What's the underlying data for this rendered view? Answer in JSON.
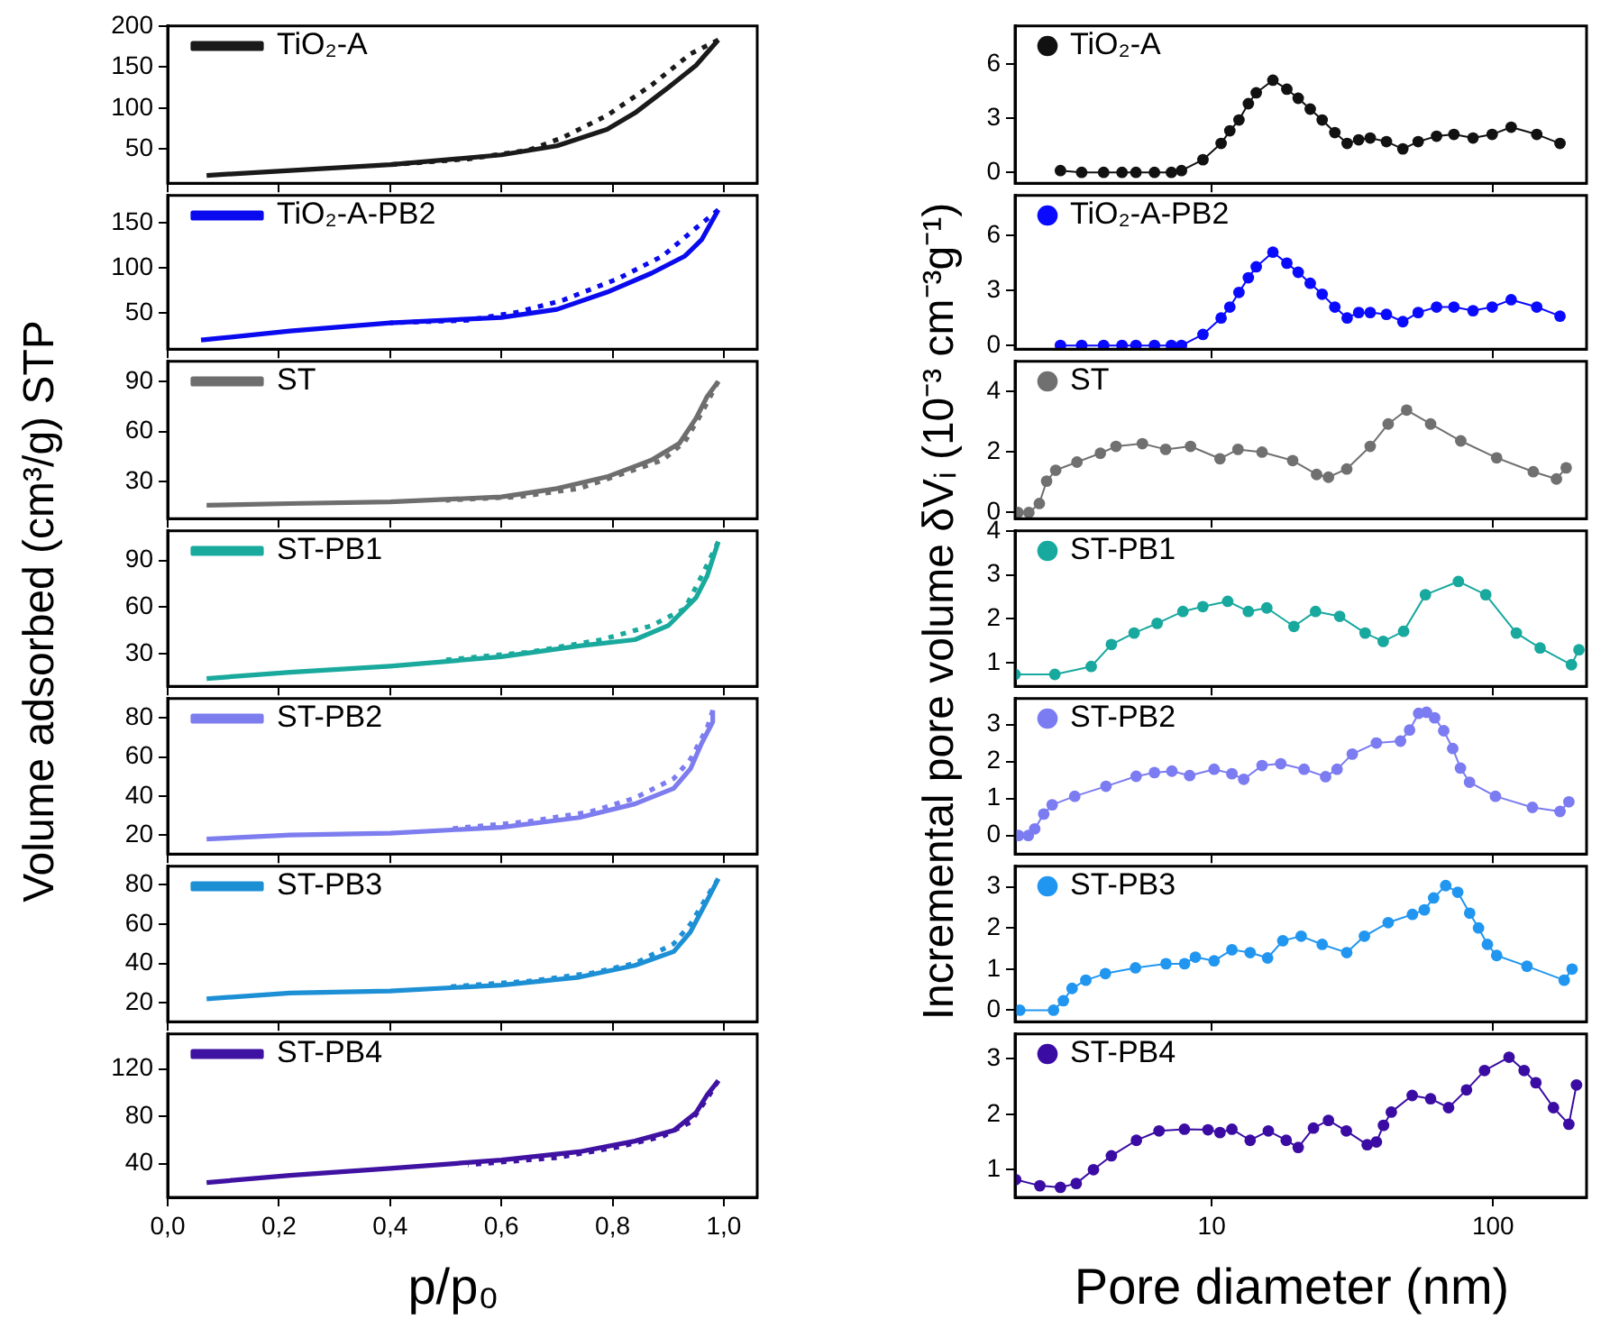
{
  "chart_data": [
    {
      "type": "line",
      "ylabel": "Volume adsorbed (cm³/g) STP",
      "legend": "top left",
      "marker": "none",
      "tick_labels": "y",
      "xlim": [
        0,
        1.06
      ],
      "xticks": [
        {
          "value": 0,
          "label": null
        },
        {
          "value": 0.2,
          "label": null
        },
        {
          "value": 0.4,
          "label": null
        },
        {
          "value": 0.6,
          "label": null
        },
        {
          "value": 0.8,
          "label": null
        },
        {
          "value": 1,
          "label": null
        }
      ],
      "ylim": [
        8.5,
        200
      ],
      "yticks": [
        50,
        100,
        150,
        200
      ],
      "series": [
        {
          "name": "TiO₂-A",
          "color": "#1a1a1a",
          "line_style": "solid",
          "x": [
            0.07,
            0.22,
            0.4,
            0.6,
            0.7,
            0.79,
            0.84,
            0.9,
            0.95,
            0.99
          ],
          "values": [
            18,
            24,
            31,
            43,
            54,
            74,
            94,
            125,
            152,
            183
          ]
        },
        {
          "color": "#1a1a1a",
          "line_style": "dotted",
          "x": [
            0.99,
            0.94,
            0.87,
            0.79,
            0.71,
            0.65,
            0.54,
            0.4
          ],
          "values": [
            183,
            166,
            128,
            91,
            64,
            49,
            38,
            31
          ]
        }
      ]
    },
    {
      "type": "line",
      "legend": "top left",
      "marker": "none",
      "tick_labels": "y",
      "xlim": [
        0,
        1.06
      ],
      "xticks": [
        {
          "value": 0,
          "label": null
        },
        {
          "value": 0.2,
          "label": null
        },
        {
          "value": 0.4,
          "label": null
        },
        {
          "value": 0.6,
          "label": null
        },
        {
          "value": 0.8,
          "label": null
        },
        {
          "value": 1,
          "label": null
        }
      ],
      "ylim": [
        10,
        180
      ],
      "yticks": [
        50,
        100,
        150
      ],
      "series": [
        {
          "name": "TiO₂-A-PB2",
          "color": "#0a0aee",
          "line_style": "solid",
          "x": [
            0.06,
            0.22,
            0.4,
            0.6,
            0.7,
            0.79,
            0.87,
            0.93,
            0.96,
            0.99
          ],
          "values": [
            20,
            30,
            39,
            45,
            54,
            73,
            94,
            113,
            131,
            164
          ]
        },
        {
          "color": "#0a0aee",
          "line_style": "dotted",
          "x": [
            0.99,
            0.95,
            0.89,
            0.81,
            0.71,
            0.63,
            0.54,
            0.4
          ],
          "values": [
            164,
            144,
            113,
            88,
            64,
            51,
            42,
            39
          ]
        }
      ]
    },
    {
      "type": "line",
      "legend": "top left",
      "marker": "none",
      "tick_labels": "y",
      "xlim": [
        0,
        1.06
      ],
      "xticks": [
        {
          "value": 0,
          "label": null
        },
        {
          "value": 0.2,
          "label": null
        },
        {
          "value": 0.4,
          "label": null
        },
        {
          "value": 0.6,
          "label": null
        },
        {
          "value": 0.8,
          "label": null
        },
        {
          "value": 1,
          "label": null
        }
      ],
      "ylim": [
        8,
        102
      ],
      "yticks": [
        30,
        60,
        90
      ],
      "series": [
        {
          "name": "ST",
          "color": "#6e6e6e",
          "line_style": "solid",
          "x": [
            0.07,
            0.22,
            0.4,
            0.6,
            0.7,
            0.79,
            0.87,
            0.92,
            0.95,
            0.97,
            0.99
          ],
          "values": [
            16,
            17,
            18,
            21,
            26,
            33,
            43,
            53,
            68,
            81,
            90
          ]
        },
        {
          "color": "#6e6e6e",
          "line_style": "dotted",
          "x": [
            0.99,
            0.96,
            0.93,
            0.89,
            0.82,
            0.74,
            0.63,
            0.5
          ],
          "values": [
            90,
            71,
            54,
            43,
            35,
            26,
            21,
            19
          ]
        }
      ]
    },
    {
      "type": "line",
      "legend": "top left",
      "marker": "none",
      "tick_labels": "y",
      "xlim": [
        0,
        1.06
      ],
      "xticks": [
        {
          "value": 0,
          "label": null
        },
        {
          "value": 0.2,
          "label": null
        },
        {
          "value": 0.4,
          "label": null
        },
        {
          "value": 0.6,
          "label": null
        },
        {
          "value": 0.8,
          "label": null
        },
        {
          "value": 1,
          "label": null
        }
      ],
      "ylim": [
        9,
        109
      ],
      "yticks": [
        30,
        60,
        90
      ],
      "series": [
        {
          "name": "ST-PB1",
          "color": "#1aa99d",
          "line_style": "solid",
          "x": [
            0.07,
            0.22,
            0.4,
            0.6,
            0.74,
            0.84,
            0.9,
            0.95,
            0.97,
            0.99
          ],
          "values": [
            14,
            18,
            22,
            28,
            35,
            39,
            48,
            66,
            80,
            102
          ]
        },
        {
          "color": "#1aa99d",
          "line_style": "dotted",
          "x": [
            0.99,
            0.96,
            0.93,
            0.87,
            0.78,
            0.65,
            0.5
          ],
          "values": [
            102,
            80,
            59,
            48,
            39,
            31,
            26
          ]
        }
      ]
    },
    {
      "type": "line",
      "legend": "top left",
      "marker": "none",
      "tick_labels": "y",
      "xlim": [
        0,
        1.06
      ],
      "xticks": [
        {
          "value": 0,
          "label": null
        },
        {
          "value": 0.2,
          "label": null
        },
        {
          "value": 0.4,
          "label": null
        },
        {
          "value": 0.6,
          "label": null
        },
        {
          "value": 0.8,
          "label": null
        },
        {
          "value": 1,
          "label": null
        }
      ],
      "ylim": [
        10.3,
        90
      ],
      "yticks": [
        20,
        40,
        60,
        80
      ],
      "series": [
        {
          "name": "ST-PB2",
          "color": "#7d7def",
          "line_style": "solid",
          "x": [
            0.07,
            0.22,
            0.4,
            0.6,
            0.74,
            0.84,
            0.91,
            0.94,
            0.96,
            0.98,
            0.98
          ],
          "values": [
            18,
            20,
            21,
            24,
            29,
            36,
            44,
            54,
            67,
            78,
            84
          ]
        },
        {
          "color": "#7d7def",
          "line_style": "dotted",
          "x": [
            0.98,
            0.97,
            0.94,
            0.91,
            0.84,
            0.76,
            0.65,
            0.5
          ],
          "values": [
            84,
            75,
            59,
            49,
            39,
            32,
            27,
            23
          ]
        }
      ]
    },
    {
      "type": "line",
      "legend": "top left",
      "marker": "none",
      "tick_labels": "y",
      "xlim": [
        0,
        1.06
      ],
      "xticks": [
        {
          "value": 0,
          "label": null
        },
        {
          "value": 0.2,
          "label": null
        },
        {
          "value": 0.4,
          "label": null
        },
        {
          "value": 0.6,
          "label": null
        },
        {
          "value": 0.8,
          "label": null
        },
        {
          "value": 1,
          "label": null
        }
      ],
      "ylim": [
        10.4,
        89.3
      ],
      "yticks": [
        20,
        40,
        60,
        80
      ],
      "series": [
        {
          "name": "ST-PB3",
          "color": "#1d8fd5",
          "line_style": "solid",
          "x": [
            0.07,
            0.22,
            0.4,
            0.6,
            0.74,
            0.84,
            0.91,
            0.94,
            0.97,
            0.99
          ],
          "values": [
            22,
            25,
            26,
            29,
            33,
            39,
            46,
            56,
            72,
            83
          ]
        },
        {
          "color": "#1d8fd5",
          "line_style": "dotted",
          "x": [
            0.99,
            0.97,
            0.94,
            0.91,
            0.84,
            0.76,
            0.65,
            0.5
          ],
          "values": [
            83,
            74,
            60,
            50,
            40,
            35,
            31,
            28
          ]
        }
      ]
    },
    {
      "type": "line",
      "xlabel": "p/p₀",
      "legend": "top left",
      "marker": "none",
      "xlim": [
        0,
        1.06
      ],
      "xticks": [
        {
          "value": 0,
          "label": "0,0"
        },
        {
          "value": 0.2,
          "label": "0,2"
        },
        {
          "value": 0.4,
          "label": "0,4"
        },
        {
          "value": 0.6,
          "label": "0,6"
        },
        {
          "value": 0.8,
          "label": "0,8"
        },
        {
          "value": 1,
          "label": "1,0"
        }
      ],
      "ylim": [
        11.5,
        149.5
      ],
      "yticks": [
        40,
        80,
        120
      ],
      "series": [
        {
          "name": "ST-PB4",
          "color": "#3f12a2",
          "line_style": "solid",
          "x": [
            0.07,
            0.22,
            0.4,
            0.6,
            0.74,
            0.84,
            0.91,
            0.95,
            0.97,
            0.99
          ],
          "values": [
            24,
            30,
            36,
            43,
            50,
            59,
            68,
            83,
            98,
            110
          ]
        },
        {
          "color": "#3f12a2",
          "line_style": "dotted",
          "x": [
            0.99,
            0.97,
            0.94,
            0.89,
            0.81,
            0.7,
            0.54
          ],
          "values": [
            110,
            95,
            75,
            63,
            54,
            45,
            39
          ]
        }
      ]
    },
    {
      "type": "line",
      "ylabel": "Incremental pore volume δVᵢ (10⁻³ cm⁻³g⁻¹)",
      "legend": "top left",
      "marker": "circle",
      "line_style": "solid",
      "log": "x",
      "tick_labels": "y",
      "xlim": [
        2,
        215
      ],
      "xticks": [
        {
          "value": 10,
          "label": null
        },
        {
          "value": 100,
          "label": null
        }
      ],
      "ylim": [
        -0.6,
        8.1
      ],
      "yticks": [
        0,
        3,
        6
      ],
      "series": [
        {
          "name": "TiO₂-A",
          "color": "#111111",
          "x": [
            2.9,
            3.45,
            4.13,
            4.8,
            5.38,
            6.26,
            7.19,
            7.81,
            9.31,
            10.8,
            11.6,
            12.5,
            13.5,
            14.4,
            16.5,
            18.5,
            20.3,
            22.4,
            24.7,
            27.4,
            30.3,
            33.3,
            36.6,
            41.8,
            47.8,
            54.2,
            63,
            72.6,
            84.9,
            99.3,
            116,
            143,
            173
          ],
          "values": [
            0.1,
            0,
            0,
            0,
            0,
            0,
            0,
            0.1,
            0.7,
            1.6,
            2.3,
            2.9,
            3.8,
            4.4,
            5.1,
            4.6,
            4.1,
            3.5,
            2.9,
            2.2,
            1.6,
            1.8,
            1.9,
            1.7,
            1.3,
            1.7,
            2.0,
            2.1,
            1.9,
            2.1,
            2.5,
            2.1,
            1.6
          ]
        }
      ]
    },
    {
      "type": "line",
      "legend": "top left",
      "marker": "circle",
      "line_style": "solid",
      "log": "x",
      "tick_labels": "y",
      "xlim": [
        2,
        215
      ],
      "xticks": [
        {
          "value": 10,
          "label": null
        },
        {
          "value": 100,
          "label": null
        }
      ],
      "ylim": [
        -0.2,
        8.2
      ],
      "yticks": [
        0,
        3,
        6
      ],
      "series": [
        {
          "name": "TiO₂-A-PB2",
          "color": "#0a0aff",
          "x": [
            2.9,
            3.45,
            4.13,
            4.8,
            5.38,
            6.26,
            7.19,
            7.81,
            9.31,
            10.8,
            11.6,
            12.5,
            13.5,
            14.4,
            16.5,
            18.5,
            20.3,
            22.4,
            24.7,
            27.4,
            30.3,
            33.3,
            36.6,
            41.8,
            47.8,
            54.2,
            63,
            72.6,
            84.9,
            99.3,
            116,
            143,
            173
          ],
          "values": [
            0,
            0,
            0,
            0,
            0,
            0,
            0,
            0,
            0.6,
            1.5,
            2.1,
            2.9,
            3.7,
            4.3,
            5.1,
            4.5,
            4.0,
            3.4,
            2.8,
            2.1,
            1.5,
            1.8,
            1.8,
            1.7,
            1.3,
            1.8,
            2.1,
            2.1,
            1.9,
            2.1,
            2.5,
            2.1,
            1.6
          ]
        }
      ]
    },
    {
      "type": "line",
      "legend": "top left",
      "marker": "circle",
      "line_style": "solid",
      "log": "x",
      "tick_labels": "y",
      "xlim": [
        2,
        215
      ],
      "xticks": [
        {
          "value": 10,
          "label": null
        },
        {
          "value": 100,
          "label": null
        }
      ],
      "ylim": [
        -0.2,
        5
      ],
      "yticks": [
        0,
        2,
        4
      ],
      "series": [
        {
          "name": "ST",
          "color": "#707070",
          "x": [
            2.05,
            2.24,
            2.44,
            2.59,
            2.79,
            3.32,
            4.02,
            4.57,
            5.67,
            6.86,
            8.41,
            10.7,
            12.4,
            15.1,
            19.4,
            23.6,
            26,
            30.2,
            36.6,
            42.4,
            49.3,
            60,
            76.8,
            103,
            139,
            168,
            182
          ],
          "values": [
            0,
            0,
            0.3,
            1.04,
            1.4,
            1.67,
            1.96,
            2.19,
            2.28,
            2.09,
            2.19,
            1.78,
            2.09,
            2.0,
            1.72,
            1.26,
            1.17,
            1.44,
            2.19,
            2.93,
            3.39,
            2.93,
            2.37,
            1.81,
            1.35,
            1.11,
            1.48
          ]
        }
      ]
    },
    {
      "type": "line",
      "legend": "top left",
      "marker": "circle",
      "line_style": "solid",
      "log": "x",
      "tick_labels": "y",
      "xlim": [
        2,
        215
      ],
      "xticks": [
        {
          "value": 10,
          "label": null
        },
        {
          "value": 100,
          "label": null
        }
      ],
      "ylim": [
        0.47,
        4
      ],
      "yticks": [
        1,
        2,
        3,
        4
      ],
      "series": [
        {
          "name": "ST-PB1",
          "color": "#17a89e",
          "x": [
            2.0,
            2.77,
            3.73,
            4.4,
            5.3,
            6.4,
            7.9,
            9.3,
            11.4,
            13.5,
            15.7,
            19.6,
            23.4,
            28.5,
            35.1,
            40.7,
            48.1,
            57.5,
            75.3,
            94.2,
            121,
            147,
            190,
            202
          ],
          "values": [
            0.74,
            0.74,
            0.92,
            1.42,
            1.68,
            1.9,
            2.17,
            2.28,
            2.4,
            2.17,
            2.25,
            1.83,
            2.17,
            2.06,
            1.68,
            1.49,
            1.72,
            2.55,
            2.85,
            2.55,
            1.68,
            1.34,
            0.96,
            1.3
          ]
        }
      ]
    },
    {
      "type": "line",
      "legend": "top left",
      "marker": "circle",
      "line_style": "solid",
      "log": "x",
      "tick_labels": "y",
      "xlim": [
        2,
        215
      ],
      "xticks": [
        {
          "value": 10,
          "label": null
        },
        {
          "value": 100,
          "label": null
        }
      ],
      "ylim": [
        -0.5,
        3.7
      ],
      "yticks": [
        0,
        1,
        2,
        3
      ],
      "series": [
        {
          "name": "ST-PB2",
          "color": "#7b7bf2",
          "x": [
            2.06,
            2.23,
            2.35,
            2.53,
            2.71,
            3.26,
            4.21,
            5.39,
            6.26,
            7.22,
            8.35,
            10.2,
            11.8,
            13.0,
            15.1,
            17.6,
            21.3,
            25.4,
            27.9,
            31.6,
            38.5,
            46.9,
            50.5,
            54.4,
            58,
            62,
            66.8,
            71.9,
            76.6,
            82.5,
            102,
            138,
            173,
            186
          ],
          "values": [
            0,
            0,
            0.18,
            0.58,
            0.83,
            1.06,
            1.33,
            1.6,
            1.7,
            1.74,
            1.62,
            1.79,
            1.67,
            1.52,
            1.89,
            1.94,
            1.79,
            1.59,
            1.79,
            2.2,
            2.5,
            2.55,
            2.85,
            3.3,
            3.33,
            3.18,
            2.83,
            2.35,
            1.82,
            1.44,
            1.06,
            0.76,
            0.65,
            0.91
          ]
        }
      ]
    },
    {
      "type": "line",
      "legend": "top left",
      "marker": "circle",
      "line_style": "solid",
      "log": "x",
      "tick_labels": "y",
      "xlim": [
        2,
        215
      ],
      "xticks": [
        {
          "value": 10,
          "label": null
        },
        {
          "value": 100,
          "label": null
        }
      ],
      "ylim": [
        -0.28,
        3.5
      ],
      "yticks": [
        0,
        1,
        2,
        3
      ],
      "series": [
        {
          "name": "ST-PB3",
          "color": "#2196f0",
          "x": [
            2.08,
            2.74,
            2.97,
            3.19,
            3.57,
            4.19,
            5.36,
            6.88,
            8.01,
            8.75,
            10.2,
            11.8,
            13.7,
            15.8,
            17.9,
            20.8,
            24.7,
            30.2,
            34.9,
            42.4,
            51.7,
            57,
            61.5,
            67.9,
            74.9,
            82.6,
            88.8,
            95.5,
            103,
            132,
            179,
            191
          ],
          "values": [
            0,
            0,
            0.23,
            0.53,
            0.73,
            0.89,
            1.03,
            1.13,
            1.13,
            1.29,
            1.2,
            1.47,
            1.4,
            1.27,
            1.69,
            1.8,
            1.6,
            1.4,
            1.8,
            2.13,
            2.33,
            2.44,
            2.73,
            3.03,
            2.87,
            2.36,
            2.0,
            1.6,
            1.33,
            1.07,
            0.73,
            1.0
          ]
        }
      ]
    },
    {
      "type": "line",
      "xlabel": "Pore diameter (nm)",
      "legend": "top left",
      "marker": "circle",
      "line_style": "solid",
      "log": "x",
      "xlim": [
        2,
        215
      ],
      "xticks": [
        10,
        100
      ],
      "ylim": [
        0.5,
        3.45
      ],
      "yticks": [
        1,
        2,
        3
      ],
      "series": [
        {
          "name": "ST-PB4",
          "color": "#3a0ca3",
          "x": [
            2.01,
            2.45,
            2.9,
            3.3,
            3.8,
            4.4,
            5.4,
            6.5,
            8.0,
            9.7,
            10.7,
            11.8,
            13.7,
            15.9,
            18.4,
            20.3,
            23,
            26,
            30.1,
            35.7,
            38.5,
            40.8,
            43.5,
            51.6,
            60,
            69.5,
            80.5,
            93.3,
            114,
            129,
            142,
            164,
            186,
            198
          ],
          "values": [
            0.82,
            0.71,
            0.68,
            0.75,
            1.0,
            1.25,
            1.53,
            1.7,
            1.73,
            1.72,
            1.67,
            1.73,
            1.53,
            1.7,
            1.53,
            1.4,
            1.75,
            1.89,
            1.7,
            1.45,
            1.5,
            1.8,
            2.04,
            2.34,
            2.28,
            2.12,
            2.44,
            2.79,
            3.03,
            2.79,
            2.57,
            2.12,
            1.82,
            2.53
          ]
        }
      ]
    }
  ]
}
